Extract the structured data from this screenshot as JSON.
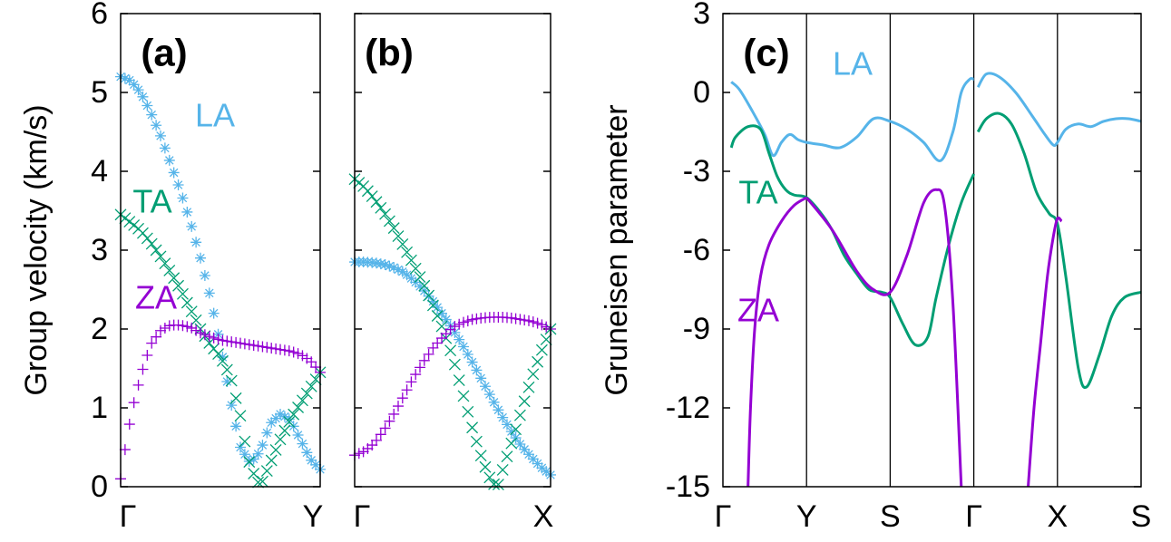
{
  "colors": {
    "LA": "#56B4E9",
    "TA": "#009E73",
    "ZA": "#9400D3",
    "axis": "#000000"
  },
  "chart_data": [
    {
      "panel": "(a)",
      "type": "scatter",
      "ylabel": "Group velocity (km/s)",
      "xlabel": "",
      "xticks": [
        "Γ",
        "Y"
      ],
      "ylim": [
        0,
        6
      ],
      "yticks": [
        "0",
        "1",
        "2",
        "3",
        "4",
        "5",
        "6"
      ],
      "x_range": [
        0,
        1
      ],
      "series_labels": [
        {
          "name": "LA",
          "color_key": "LA",
          "marker": "*"
        },
        {
          "name": "TA",
          "color_key": "TA",
          "marker": "x"
        },
        {
          "name": "ZA",
          "color_key": "ZA",
          "marker": "+"
        }
      ],
      "series": [
        {
          "name": "LA",
          "marker": "*",
          "color_key": "LA",
          "x": [
            0,
            0.05,
            0.1,
            0.15,
            0.2,
            0.25,
            0.3,
            0.35,
            0.4,
            0.45,
            0.5,
            0.55,
            0.6,
            0.65,
            0.7,
            0.75,
            0.8,
            0.85,
            0.9,
            0.95,
            1.0
          ],
          "y": [
            5.2,
            5.15,
            5.0,
            4.75,
            4.45,
            4.1,
            3.75,
            3.35,
            2.9,
            2.4,
            1.8,
            1.1,
            0.5,
            0.3,
            0.45,
            0.8,
            0.92,
            0.85,
            0.6,
            0.35,
            0.22
          ]
        },
        {
          "name": "TA",
          "marker": "x",
          "color_key": "TA",
          "x": [
            0,
            0.05,
            0.1,
            0.15,
            0.2,
            0.25,
            0.3,
            0.35,
            0.4,
            0.45,
            0.5,
            0.55,
            0.6,
            0.62,
            0.65,
            0.7,
            0.75,
            0.8,
            0.85,
            0.9,
            0.95,
            1.0
          ],
          "y": [
            3.45,
            3.35,
            3.25,
            3.1,
            2.92,
            2.72,
            2.5,
            2.25,
            2.0,
            1.8,
            1.65,
            1.4,
            0.9,
            0.6,
            0.25,
            0.0,
            0.3,
            0.6,
            0.85,
            1.05,
            1.25,
            1.45
          ]
        },
        {
          "name": "ZA",
          "marker": "+",
          "color_key": "ZA",
          "x": [
            0,
            0.03,
            0.06,
            0.1,
            0.15,
            0.2,
            0.25,
            0.3,
            0.35,
            0.4,
            0.45,
            0.5,
            0.55,
            0.6,
            0.65,
            0.7,
            0.75,
            0.8,
            0.85,
            0.9,
            0.95,
            1.0
          ],
          "y": [
            0.1,
            0.6,
            1.0,
            1.4,
            1.8,
            1.98,
            2.05,
            2.05,
            2.02,
            1.95,
            1.9,
            1.86,
            1.84,
            1.82,
            1.8,
            1.78,
            1.76,
            1.74,
            1.72,
            1.68,
            1.6,
            1.45
          ]
        }
      ]
    },
    {
      "panel": "(b)",
      "type": "scatter",
      "xlabel": "",
      "xticks": [
        "Γ",
        "X"
      ],
      "ylim": [
        0,
        6
      ],
      "x_range": [
        0,
        1
      ],
      "series": [
        {
          "name": "LA",
          "marker": "*",
          "color_key": "LA",
          "x": [
            0,
            0.05,
            0.1,
            0.15,
            0.2,
            0.25,
            0.3,
            0.35,
            0.4,
            0.45,
            0.5,
            0.55,
            0.6,
            0.65,
            0.7,
            0.75,
            0.8,
            0.85,
            0.9,
            0.95,
            1.0
          ],
          "y": [
            2.85,
            2.85,
            2.84,
            2.82,
            2.78,
            2.72,
            2.62,
            2.5,
            2.35,
            2.18,
            2.0,
            1.8,
            1.58,
            1.35,
            1.12,
            0.9,
            0.7,
            0.52,
            0.38,
            0.25,
            0.15
          ]
        },
        {
          "name": "TA",
          "marker": "x",
          "color_key": "TA",
          "x": [
            0,
            0.05,
            0.1,
            0.15,
            0.2,
            0.25,
            0.3,
            0.35,
            0.4,
            0.45,
            0.5,
            0.55,
            0.6,
            0.65,
            0.7,
            0.73,
            0.76,
            0.8,
            0.85,
            0.9,
            0.95,
            1.0
          ],
          "y": [
            3.9,
            3.8,
            3.65,
            3.48,
            3.28,
            3.05,
            2.82,
            2.58,
            2.3,
            2.0,
            1.65,
            1.2,
            0.75,
            0.35,
            0.05,
            0.0,
            0.25,
            0.55,
            0.95,
            1.35,
            1.7,
            2.0
          ]
        },
        {
          "name": "ZA",
          "marker": "+",
          "color_key": "ZA",
          "x": [
            0,
            0.05,
            0.1,
            0.15,
            0.2,
            0.25,
            0.3,
            0.35,
            0.4,
            0.45,
            0.5,
            0.55,
            0.6,
            0.65,
            0.7,
            0.75,
            0.8,
            0.85,
            0.9,
            0.95,
            1.0
          ],
          "y": [
            0.4,
            0.45,
            0.55,
            0.72,
            0.92,
            1.15,
            1.38,
            1.58,
            1.76,
            1.9,
            2.02,
            2.08,
            2.12,
            2.14,
            2.15,
            2.15,
            2.14,
            2.12,
            2.1,
            2.06,
            2.0
          ]
        }
      ]
    },
    {
      "panel": "(c)",
      "type": "line",
      "ylabel": "Gruneisen parameter",
      "xlabel": "",
      "xticks": [
        "Γ",
        "Y",
        "S",
        "Γ",
        "X",
        "S"
      ],
      "xtick_pos": [
        0,
        1,
        2,
        3,
        4,
        5
      ],
      "x_range": [
        0,
        5
      ],
      "ylim": [
        -15,
        3
      ],
      "yticks": [
        "3",
        "0",
        "-3",
        "-6",
        "-9",
        "-12",
        "-15"
      ],
      "ytick_vals": [
        3,
        0,
        -3,
        -6,
        -9,
        -12,
        -15
      ],
      "series_labels": [
        {
          "name": "LA",
          "color_key": "LA"
        },
        {
          "name": "TA",
          "color_key": "TA"
        },
        {
          "name": "ZA",
          "color_key": "ZA"
        }
      ],
      "series": [
        {
          "name": "LA",
          "color_key": "LA",
          "segments": [
            {
              "x": [
                0.1,
                0.2,
                0.35,
                0.5,
                0.6,
                0.7,
                0.8,
                0.9,
                1.0,
                1.2,
                1.4,
                1.6,
                1.8,
                2.0,
                2.2,
                2.4,
                2.6,
                2.75,
                2.85,
                2.95,
                3.0
              ],
              "y": [
                0.4,
                0.1,
                -0.7,
                -1.6,
                -2.4,
                -1.9,
                -1.6,
                -1.8,
                -1.9,
                -2.0,
                -2.1,
                -1.7,
                -1.0,
                -1.1,
                -1.4,
                -1.9,
                -2.6,
                -1.5,
                0.0,
                0.5,
                0.5
              ]
            },
            {
              "x": [
                3.05,
                3.15,
                3.3,
                3.5,
                3.7,
                3.85,
                3.95,
                4.0,
                4.1,
                4.25,
                4.4,
                4.55,
                4.7,
                4.85,
                5.0
              ],
              "y": [
                0.2,
                0.7,
                0.6,
                0.0,
                -0.9,
                -1.6,
                -2.0,
                -1.9,
                -1.4,
                -1.2,
                -1.3,
                -1.1,
                -1.0,
                -1.0,
                -1.1
              ]
            }
          ]
        },
        {
          "name": "TA",
          "color_key": "TA",
          "segments": [
            {
              "x": [
                0.1,
                0.15,
                0.3,
                0.45,
                0.55,
                0.65,
                0.75,
                0.85,
                1.0,
                1.15,
                1.3,
                1.45,
                1.6,
                1.75,
                1.9,
                2.0,
                2.15,
                2.3,
                2.45,
                2.55,
                2.7,
                2.85,
                3.0
              ],
              "y": [
                -2.1,
                -1.7,
                -1.3,
                -1.4,
                -2.3,
                -3.2,
                -3.7,
                -3.9,
                -4.0,
                -4.5,
                -5.2,
                -6.2,
                -6.9,
                -7.5,
                -7.6,
                -7.8,
                -8.8,
                -9.6,
                -9.3,
                -7.8,
                -5.8,
                -4.2,
                -3.1
              ]
            },
            {
              "x": [
                3.05,
                3.15,
                3.3,
                3.45,
                3.6,
                3.75,
                3.9,
                4.0,
                4.1,
                4.25,
                4.35,
                4.5,
                4.65,
                4.8,
                5.0
              ],
              "y": [
                -1.5,
                -1.0,
                -0.8,
                -1.2,
                -2.3,
                -3.8,
                -4.6,
                -5.0,
                -7.0,
                -10.5,
                -11.2,
                -10.0,
                -8.5,
                -7.8,
                -7.6
              ]
            }
          ]
        },
        {
          "name": "ZA",
          "color_key": "ZA",
          "segments": [
            {
              "x": [
                0.3,
                0.33,
                0.38,
                0.45,
                0.55,
                0.7,
                0.85,
                1.0
              ],
              "y": [
                -15,
                -12.0,
                -9.0,
                -7.0,
                -5.8,
                -4.9,
                -4.3,
                -4.0
              ]
            },
            {
              "x": [
                1.0,
                1.3,
                1.6,
                1.8,
                2.0,
                2.2,
                2.4,
                2.55,
                2.65,
                2.75,
                2.85
              ],
              "y": [
                -4.0,
                -5.2,
                -6.8,
                -7.5,
                -7.6,
                -6.2,
                -4.2,
                -3.7,
                -4.3,
                -8.0,
                -15
              ]
            },
            {
              "x": [
                3.65,
                3.72,
                3.8,
                3.88,
                3.95,
                4.0,
                4.05
              ],
              "y": [
                -15,
                -12.0,
                -9.5,
                -7.0,
                -5.5,
                -4.8,
                -4.9
              ]
            }
          ]
        }
      ]
    }
  ]
}
